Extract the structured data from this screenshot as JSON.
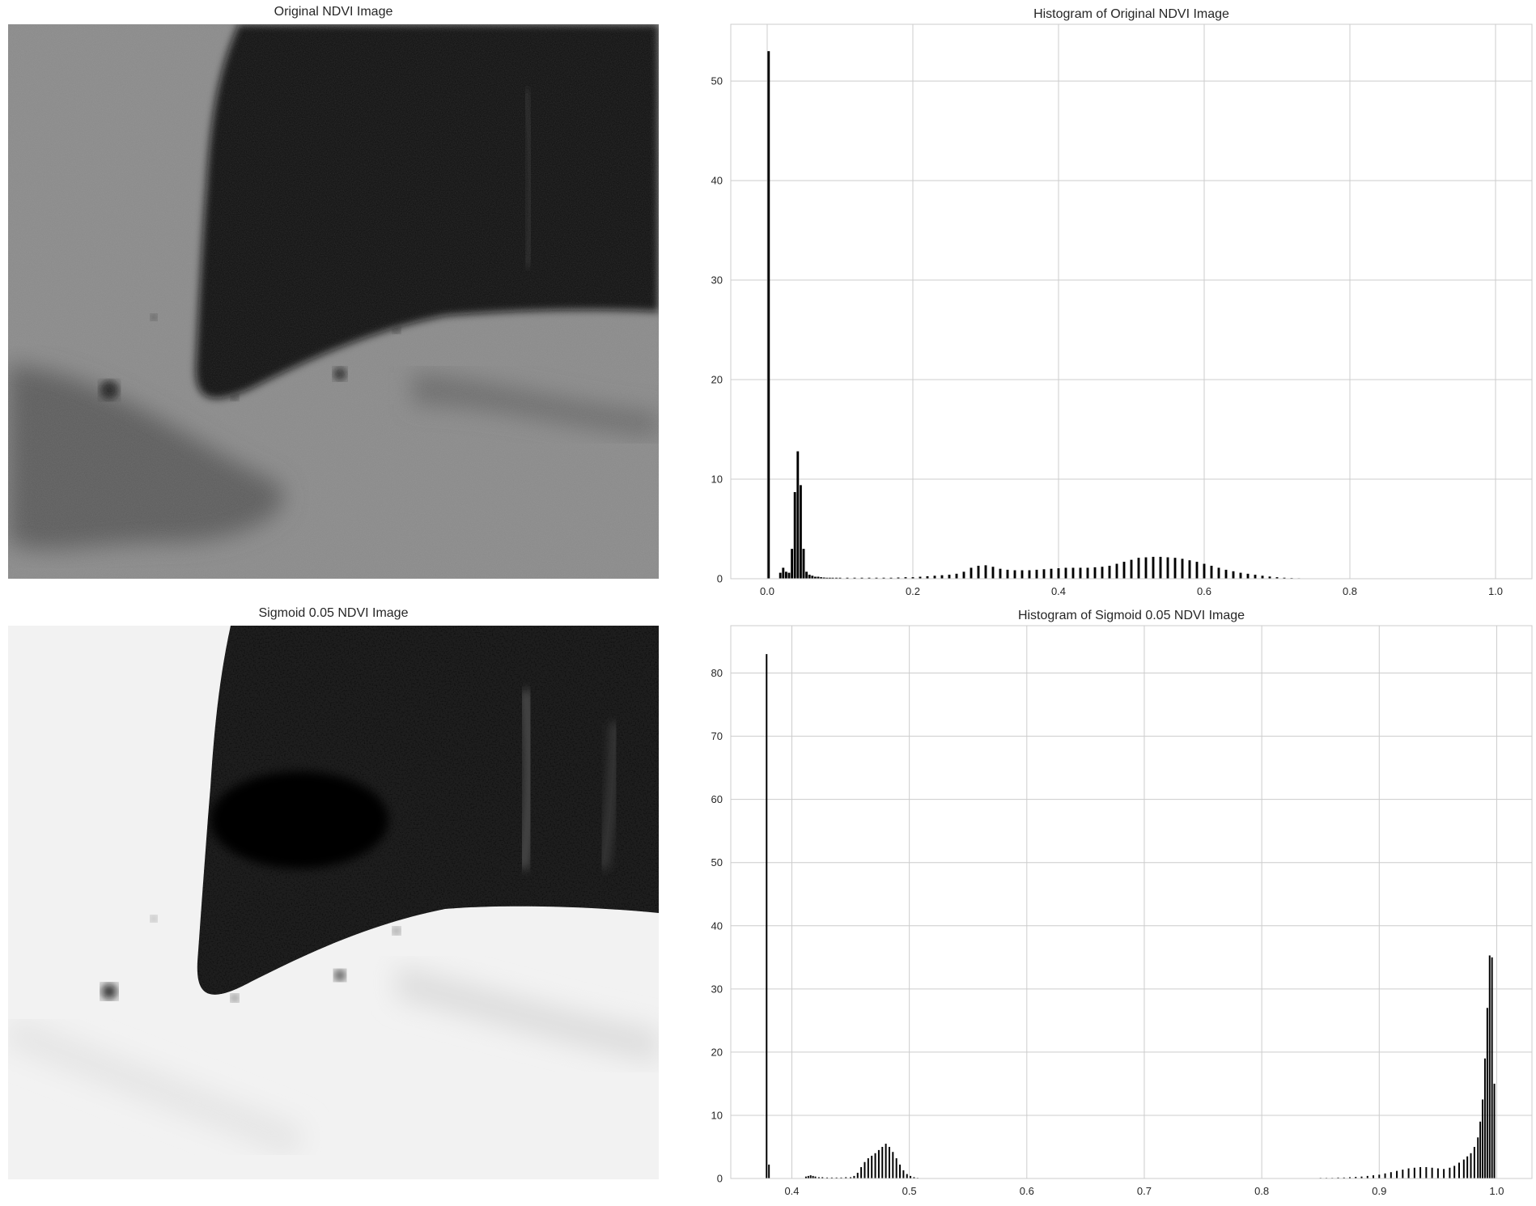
{
  "panels": {
    "original_image_title": "Original NDVI Image",
    "sigmoid_image_title": "Sigmoid 0.05 NDVI Image"
  },
  "colors": {
    "bar": "#000000",
    "grid": "#cccccc",
    "axes_edge": "#cccccc",
    "image_dark": "#0a0a0a",
    "image_gray": "#7a7a7a",
    "image_light": "#f4f4f4"
  },
  "chart_data": [
    {
      "type": "bar",
      "title": "Histogram of Original NDVI Image",
      "xlabel": "",
      "ylabel": "",
      "xlim": [
        -0.05,
        1.05
      ],
      "ylim": [
        0,
        55.7
      ],
      "xticks": [
        0.0,
        0.2,
        0.4,
        0.6,
        0.8,
        1.0
      ],
      "xtick_labels": [
        "0.0",
        "0.2",
        "0.4",
        "0.6",
        "0.8",
        "1.0"
      ],
      "yticks": [
        0,
        10,
        20,
        30,
        40,
        50
      ],
      "ytick_labels": [
        "0",
        "10",
        "20",
        "30",
        "40",
        "50"
      ],
      "grid": true,
      "bin_width": 0.004,
      "bars": [
        [
          0.002,
          53.0
        ],
        [
          0.018,
          0.6
        ],
        [
          0.022,
          1.1
        ],
        [
          0.026,
          0.7
        ],
        [
          0.03,
          0.6
        ],
        [
          0.034,
          3.0
        ],
        [
          0.038,
          8.7
        ],
        [
          0.042,
          12.8
        ],
        [
          0.046,
          9.4
        ],
        [
          0.05,
          3.0
        ],
        [
          0.054,
          0.7
        ],
        [
          0.058,
          0.4
        ],
        [
          0.062,
          0.3
        ],
        [
          0.066,
          0.2
        ],
        [
          0.07,
          0.2
        ],
        [
          0.074,
          0.15
        ],
        [
          0.078,
          0.12
        ],
        [
          0.082,
          0.1
        ],
        [
          0.086,
          0.1
        ],
        [
          0.09,
          0.1
        ],
        [
          0.095,
          0.1
        ],
        [
          0.1,
          0.1
        ],
        [
          0.11,
          0.1
        ],
        [
          0.12,
          0.1
        ],
        [
          0.13,
          0.1
        ],
        [
          0.14,
          0.1
        ],
        [
          0.15,
          0.1
        ],
        [
          0.16,
          0.1
        ],
        [
          0.17,
          0.1
        ],
        [
          0.18,
          0.12
        ],
        [
          0.19,
          0.15
        ],
        [
          0.2,
          0.15
        ],
        [
          0.21,
          0.2
        ],
        [
          0.22,
          0.25
        ],
        [
          0.23,
          0.3
        ],
        [
          0.24,
          0.35
        ],
        [
          0.25,
          0.4
        ],
        [
          0.26,
          0.5
        ],
        [
          0.27,
          0.7
        ],
        [
          0.28,
          1.1
        ],
        [
          0.29,
          1.3
        ],
        [
          0.3,
          1.35
        ],
        [
          0.31,
          1.2
        ],
        [
          0.32,
          1.0
        ],
        [
          0.33,
          0.9
        ],
        [
          0.34,
          0.85
        ],
        [
          0.35,
          0.85
        ],
        [
          0.36,
          0.85
        ],
        [
          0.37,
          0.9
        ],
        [
          0.38,
          0.95
        ],
        [
          0.39,
          1.0
        ],
        [
          0.4,
          1.05
        ],
        [
          0.41,
          1.1
        ],
        [
          0.42,
          1.1
        ],
        [
          0.43,
          1.1
        ],
        [
          0.44,
          1.1
        ],
        [
          0.45,
          1.15
        ],
        [
          0.46,
          1.2
        ],
        [
          0.47,
          1.3
        ],
        [
          0.48,
          1.5
        ],
        [
          0.49,
          1.7
        ],
        [
          0.5,
          1.9
        ],
        [
          0.51,
          2.1
        ],
        [
          0.52,
          2.15
        ],
        [
          0.53,
          2.2
        ],
        [
          0.54,
          2.2
        ],
        [
          0.55,
          2.15
        ],
        [
          0.56,
          2.1
        ],
        [
          0.57,
          2.0
        ],
        [
          0.58,
          1.85
        ],
        [
          0.59,
          1.7
        ],
        [
          0.6,
          1.5
        ],
        [
          0.61,
          1.3
        ],
        [
          0.62,
          1.1
        ],
        [
          0.63,
          0.9
        ],
        [
          0.64,
          0.75
        ],
        [
          0.65,
          0.6
        ],
        [
          0.66,
          0.5
        ],
        [
          0.67,
          0.4
        ],
        [
          0.68,
          0.3
        ],
        [
          0.69,
          0.22
        ],
        [
          0.7,
          0.15
        ],
        [
          0.71,
          0.1
        ],
        [
          0.72,
          0.07
        ],
        [
          0.73,
          0.05
        ],
        [
          0.74,
          0.03
        ]
      ]
    },
    {
      "type": "bar",
      "title": "Histogram of Sigmoid 0.05 NDVI Image",
      "xlabel": "",
      "ylabel": "",
      "xlim": [
        0.348,
        1.03
      ],
      "ylim": [
        0,
        87.5
      ],
      "xticks": [
        0.4,
        0.5,
        0.6,
        0.7,
        0.8,
        0.9,
        1.0
      ],
      "xtick_labels": [
        "0.4",
        "0.5",
        "0.6",
        "0.7",
        "0.8",
        "0.9",
        "1.0"
      ],
      "yticks": [
        0,
        10,
        20,
        30,
        40,
        50,
        60,
        70,
        80
      ],
      "ytick_labels": [
        "0",
        "10",
        "20",
        "30",
        "40",
        "50",
        "60",
        "70",
        "80"
      ],
      "grid": true,
      "bin_width": 0.0017,
      "bars": [
        [
          0.3785,
          83.0
        ],
        [
          0.3805,
          2.2
        ],
        [
          0.412,
          0.3
        ],
        [
          0.414,
          0.4
        ],
        [
          0.416,
          0.5
        ],
        [
          0.418,
          0.4
        ],
        [
          0.42,
          0.3
        ],
        [
          0.423,
          0.2
        ],
        [
          0.426,
          0.2
        ],
        [
          0.43,
          0.15
        ],
        [
          0.434,
          0.15
        ],
        [
          0.438,
          0.15
        ],
        [
          0.442,
          0.15
        ],
        [
          0.446,
          0.2
        ],
        [
          0.45,
          0.2
        ],
        [
          0.453,
          0.4
        ],
        [
          0.456,
          0.9
        ],
        [
          0.459,
          1.8
        ],
        [
          0.462,
          2.6
        ],
        [
          0.465,
          3.2
        ],
        [
          0.468,
          3.6
        ],
        [
          0.471,
          4.0
        ],
        [
          0.474,
          4.5
        ],
        [
          0.477,
          5.0
        ],
        [
          0.48,
          5.5
        ],
        [
          0.483,
          5.0
        ],
        [
          0.486,
          4.2
        ],
        [
          0.489,
          3.2
        ],
        [
          0.492,
          2.2
        ],
        [
          0.495,
          1.3
        ],
        [
          0.498,
          0.7
        ],
        [
          0.501,
          0.4
        ],
        [
          0.504,
          0.2
        ],
        [
          0.507,
          0.1
        ],
        [
          0.85,
          0.1
        ],
        [
          0.855,
          0.1
        ],
        [
          0.86,
          0.1
        ],
        [
          0.865,
          0.15
        ],
        [
          0.87,
          0.15
        ],
        [
          0.875,
          0.2
        ],
        [
          0.88,
          0.25
        ],
        [
          0.885,
          0.3
        ],
        [
          0.89,
          0.4
        ],
        [
          0.895,
          0.5
        ],
        [
          0.9,
          0.6
        ],
        [
          0.905,
          0.8
        ],
        [
          0.91,
          1.0
        ],
        [
          0.915,
          1.2
        ],
        [
          0.92,
          1.4
        ],
        [
          0.925,
          1.6
        ],
        [
          0.93,
          1.7
        ],
        [
          0.935,
          1.8
        ],
        [
          0.94,
          1.8
        ],
        [
          0.945,
          1.7
        ],
        [
          0.95,
          1.6
        ],
        [
          0.955,
          1.5
        ],
        [
          0.96,
          1.7
        ],
        [
          0.964,
          2.0
        ],
        [
          0.968,
          2.5
        ],
        [
          0.972,
          3.0
        ],
        [
          0.975,
          3.5
        ],
        [
          0.978,
          4.0
        ],
        [
          0.981,
          5.0
        ],
        [
          0.984,
          6.5
        ],
        [
          0.986,
          9.0
        ],
        [
          0.988,
          12.5
        ],
        [
          0.99,
          19.0
        ],
        [
          0.992,
          27.0
        ],
        [
          0.994,
          35.3
        ],
        [
          0.996,
          35.0
        ],
        [
          0.998,
          15.0
        ]
      ]
    }
  ]
}
